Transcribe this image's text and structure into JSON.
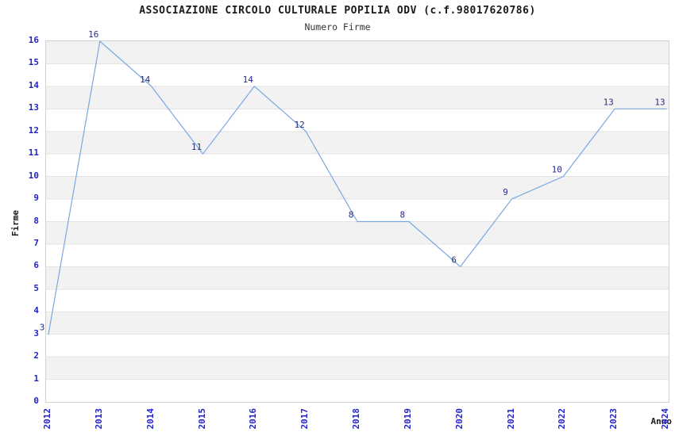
{
  "header": {
    "title": "ASSOCIAZIONE CIRCOLO CULTURALE POPILIA ODV (c.f.98017620786)",
    "subtitle": "Numero Firme"
  },
  "chart_data": {
    "type": "line",
    "title": "ASSOCIAZIONE CIRCOLO CULTURALE POPILIA ODV (c.f.98017620786)",
    "subtitle": "Numero Firme",
    "xlabel": "Anno",
    "ylabel": "Firme",
    "categories": [
      "2012",
      "2013",
      "2014",
      "2015",
      "2016",
      "2017",
      "2018",
      "2019",
      "2020",
      "2021",
      "2022",
      "2023",
      "2024"
    ],
    "values": [
      3,
      16,
      14,
      11,
      14,
      12,
      8,
      8,
      6,
      9,
      10,
      13,
      13
    ],
    "point_labels": [
      "3",
      "16",
      "14",
      "11",
      "14",
      "12",
      "8",
      "8",
      "6",
      "9",
      "10",
      "13",
      "13"
    ],
    "ylim": [
      0,
      16
    ],
    "ytick_step": 1,
    "grid": "horizontal",
    "bands": "alternating",
    "legend": "none",
    "colors": {
      "line": "#78a8e0",
      "point_label": "#2b2b85",
      "tick_label": "#2323cc",
      "axis_title": "#1a1a1a",
      "band_gray": "#f2f2f2",
      "gridline": "#e3e3e3",
      "plot_border": "#d2d2d2",
      "background": "#ffffff"
    }
  }
}
